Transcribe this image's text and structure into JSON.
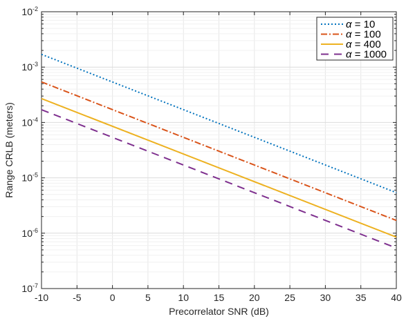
{
  "chart_data": {
    "type": "line",
    "title": "",
    "xlabel": "Precorrelator SNR (dB)",
    "ylabel": "Range CRLB (meters)",
    "xlim": [
      -10,
      40
    ],
    "ylim": [
      1e-07,
      0.01
    ],
    "yscale": "log",
    "grid": true,
    "legend_position": "top-right",
    "xticks": [
      "-10",
      "-5",
      "0",
      "5",
      "10",
      "15",
      "20",
      "25",
      "30",
      "35",
      "40"
    ],
    "xtick_values": [
      -10,
      -5,
      0,
      5,
      10,
      15,
      20,
      25,
      30,
      35,
      40
    ],
    "yticks": [
      {
        "base": "10",
        "exp": "-7",
        "value": 1e-07
      },
      {
        "base": "10",
        "exp": "-6",
        "value": 1e-06
      },
      {
        "base": "10",
        "exp": "-5",
        "value": 1e-05
      },
      {
        "base": "10",
        "exp": "-4",
        "value": 0.0001
      },
      {
        "base": "10",
        "exp": "-3",
        "value": 0.001
      },
      {
        "base": "10",
        "exp": "-2",
        "value": 0.01
      }
    ],
    "x": [
      -10,
      40
    ],
    "series": [
      {
        "name": "α = 10",
        "sym": "α",
        "rest": " = 10",
        "color": "#0072BD",
        "style": "dotted",
        "values": [
          0.0017,
          5.4e-06
        ]
      },
      {
        "name": "α = 100",
        "sym": "α",
        "rest": " = 100",
        "color": "#D95319",
        "style": "dashdot",
        "values": [
          0.00054,
          1.7e-06
        ]
      },
      {
        "name": "α = 400",
        "sym": "α",
        "rest": " = 400",
        "color": "#EDB120",
        "style": "solid",
        "values": [
          0.00027,
          8.5e-07
        ]
      },
      {
        "name": "α = 1000",
        "sym": "α",
        "rest": " = 1000",
        "color": "#7E2F8E",
        "style": "dashed",
        "values": [
          0.00017,
          5.4e-07
        ]
      }
    ]
  }
}
